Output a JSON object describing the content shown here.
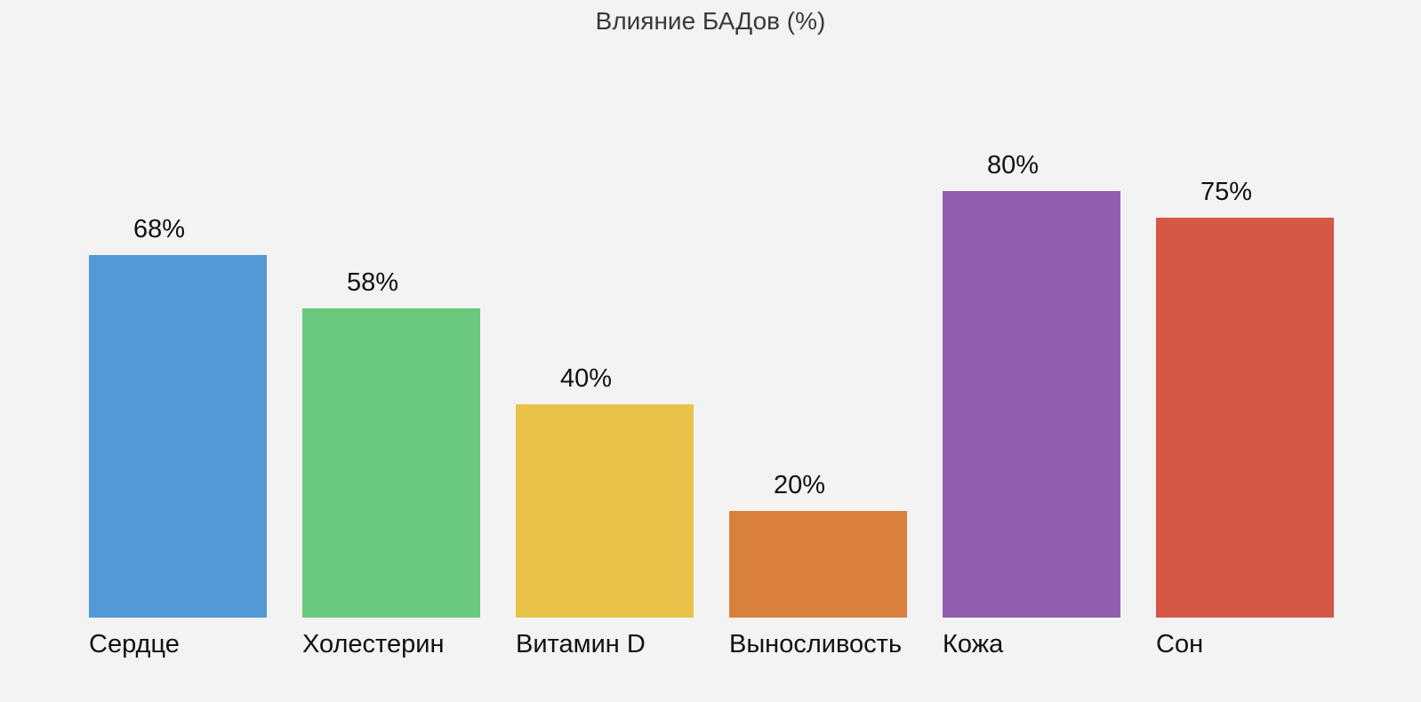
{
  "chart_data": {
    "type": "bar",
    "title": "Влияние БАДов (%)",
    "xlabel": "",
    "ylabel": "",
    "ylim": [
      0,
      100
    ],
    "grid": false,
    "categories": [
      "Сердце",
      "Холестерин",
      "Витамин D",
      "Выносливость",
      "Кожа",
      "Сон"
    ],
    "values": [
      68,
      58,
      40,
      20,
      80,
      75
    ],
    "value_labels": [
      "68%",
      "58%",
      "40%",
      "20%",
      "80%",
      "75%"
    ],
    "colors": [
      "#5299d6",
      "#68c97c",
      "#e9c348",
      "#d9803c",
      "#925eb0",
      "#d55745"
    ]
  }
}
